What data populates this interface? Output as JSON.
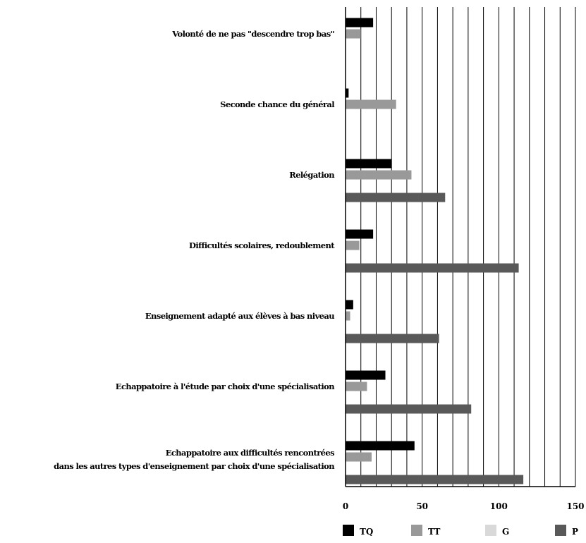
{
  "chart_data": {
    "type": "bar",
    "orientation": "horizontal",
    "categories": [
      [
        "Volonté de ne pas \"descendre trop bas\""
      ],
      [
        "Seconde chance du général"
      ],
      [
        "Relégation"
      ],
      [
        "Difficultés scolaires, redoublement"
      ],
      [
        "Enseignement adapté aux élèves à bas niveau"
      ],
      [
        "Echappatoire à l'étude par choix d'une spécialisation"
      ],
      [
        "Echappatoire aux difficultés rencontrées",
        "dans les autres types d'enseignement par choix d'une spécialisation"
      ]
    ],
    "series": [
      {
        "name": "TQ",
        "color": "#000000",
        "values": [
          18,
          2,
          30,
          18,
          5,
          26,
          45
        ]
      },
      {
        "name": "TT",
        "color": "#999999",
        "values": [
          10,
          33,
          43,
          9,
          3,
          14,
          17
        ]
      },
      {
        "name": "G",
        "color": "#d9d9d9",
        "values": [
          0,
          0,
          0,
          0,
          0,
          0,
          0
        ]
      },
      {
        "name": "P",
        "color": "#595959",
        "values": [
          0,
          0,
          65,
          113,
          61,
          82,
          116
        ]
      }
    ],
    "xlim": [
      0,
      150
    ],
    "x_major_ticks": [
      0,
      50,
      100,
      150
    ],
    "x_gridline_step": 10,
    "grid": true,
    "legend_position": "bottom",
    "title": "",
    "xlabel": "",
    "ylabel": ""
  }
}
